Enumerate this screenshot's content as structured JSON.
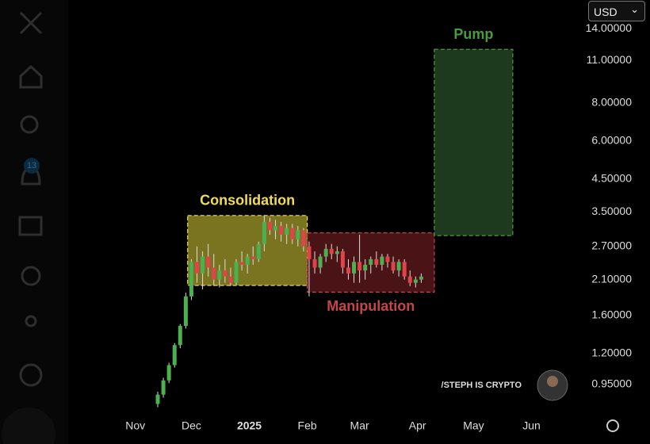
{
  "ui": {
    "currency": "USD",
    "badge": "13",
    "watermark": "/STEPH IS CRYPTO"
  },
  "chart_data": {
    "type": "candlestick",
    "log_scale": true,
    "up_color": "#4caf50",
    "down_color": "#e0444b",
    "xlim": [
      -30,
      233
    ],
    "ylim": [
      0.77,
      17.4
    ],
    "xticks": [
      {
        "value": 0,
        "label": "Nov"
      },
      {
        "value": 30,
        "label": "Dec"
      },
      {
        "value": 61,
        "label": "2025"
      },
      {
        "value": 92,
        "label": "Feb"
      },
      {
        "value": 120,
        "label": "Mar"
      },
      {
        "value": 151,
        "label": "Apr"
      },
      {
        "value": 181,
        "label": "May"
      },
      {
        "value": 212,
        "label": "Jun"
      }
    ],
    "yticks": [
      {
        "value": 14,
        "label": "14.00000"
      },
      {
        "value": 11,
        "label": "11.00000"
      },
      {
        "value": 8,
        "label": "8.00000"
      },
      {
        "value": 6,
        "label": "6.00000"
      },
      {
        "value": 4.5,
        "label": "4.50000"
      },
      {
        "value": 3.5,
        "label": "3.50000"
      },
      {
        "value": 2.7,
        "label": "2.70000"
      },
      {
        "value": 2.1,
        "label": "2.10000"
      },
      {
        "value": 1.6,
        "label": "1.60000"
      },
      {
        "value": 1.2,
        "label": "1.20000"
      },
      {
        "value": 0.95,
        "label": "0.95000"
      }
    ],
    "x": [
      12,
      15,
      18,
      21,
      24,
      27,
      30,
      33,
      36,
      39,
      42,
      45,
      48,
      51,
      54,
      57,
      60,
      63,
      66,
      69,
      72,
      75,
      78,
      81,
      84,
      87,
      90,
      93,
      96,
      99,
      102,
      105,
      108,
      111,
      114,
      117,
      120,
      123,
      126,
      129,
      132,
      135,
      138,
      141,
      144,
      147,
      150,
      153
    ],
    "open": [
      0.82,
      0.88,
      0.98,
      1.1,
      1.28,
      1.48,
      1.85,
      2.4,
      2.2,
      2.5,
      2.3,
      2.1,
      2.25,
      2.15,
      2.05,
      2.4,
      2.35,
      2.5,
      2.45,
      2.75,
      3.25,
      3.05,
      3.15,
      2.95,
      3.1,
      2.85,
      3.05,
      2.7,
      2.45,
      2.3,
      2.5,
      2.65,
      2.55,
      2.6,
      2.3,
      2.2,
      2.4,
      2.25,
      2.35,
      2.45,
      2.35,
      2.5,
      2.4,
      2.25,
      2.4,
      2.15,
      2.05,
      2.1
    ],
    "high": [
      0.9,
      1.0,
      1.12,
      1.3,
      1.5,
      1.9,
      2.45,
      2.7,
      2.6,
      2.75,
      2.55,
      2.35,
      2.45,
      2.3,
      2.45,
      2.6,
      2.55,
      2.7,
      2.8,
      3.4,
      3.35,
      3.3,
      3.25,
      3.2,
      3.2,
      3.15,
      3.1,
      2.8,
      2.6,
      2.55,
      2.75,
      2.75,
      2.7,
      2.65,
      2.45,
      2.5,
      2.95,
      2.45,
      2.5,
      2.6,
      2.55,
      2.55,
      2.5,
      2.45,
      2.45,
      2.25,
      2.15,
      2.2
    ],
    "low": [
      0.8,
      0.86,
      0.96,
      1.08,
      1.25,
      1.45,
      1.8,
      2.05,
      1.95,
      2.15,
      2.0,
      1.98,
      2.05,
      2.0,
      2.02,
      2.25,
      2.2,
      2.35,
      2.4,
      2.6,
      2.95,
      2.85,
      2.8,
      2.75,
      2.75,
      2.7,
      2.6,
      1.85,
      2.2,
      2.2,
      2.4,
      2.45,
      2.4,
      2.2,
      2.1,
      2.05,
      2.05,
      2.1,
      2.2,
      2.3,
      2.25,
      2.3,
      2.2,
      2.15,
      2.1,
      2.0,
      1.98,
      2.05
    ],
    "close": [
      0.88,
      0.98,
      1.1,
      1.28,
      1.48,
      1.85,
      2.4,
      2.2,
      2.5,
      2.3,
      2.1,
      2.25,
      2.15,
      2.05,
      2.4,
      2.35,
      2.5,
      2.45,
      2.75,
      3.25,
      3.05,
      3.15,
      2.95,
      3.1,
      2.85,
      3.05,
      2.7,
      2.45,
      2.3,
      2.5,
      2.65,
      2.55,
      2.6,
      2.3,
      2.2,
      2.4,
      2.25,
      2.35,
      2.45,
      2.35,
      2.5,
      2.4,
      2.25,
      2.4,
      2.15,
      2.05,
      2.1,
      2.15
    ],
    "zones": [
      {
        "label": "Consolidation",
        "color": "#f0dc5a",
        "fill": "#7a7320",
        "x": [
          28,
          92
        ],
        "y": [
          2.01,
          3.41
        ],
        "label_pos": "top"
      },
      {
        "label": "Manipulation",
        "color": "#c8434a",
        "fill": "#4a1416",
        "x": [
          92,
          160
        ],
        "y": [
          1.91,
          2.99
        ],
        "label_pos": "bottom"
      },
      {
        "label": "Pump",
        "color": "#4a9a3f",
        "fill": "#1e3a1e",
        "x": [
          160,
          202
        ],
        "y": [
          2.93,
          11.98
        ],
        "label_pos": "top"
      }
    ]
  }
}
